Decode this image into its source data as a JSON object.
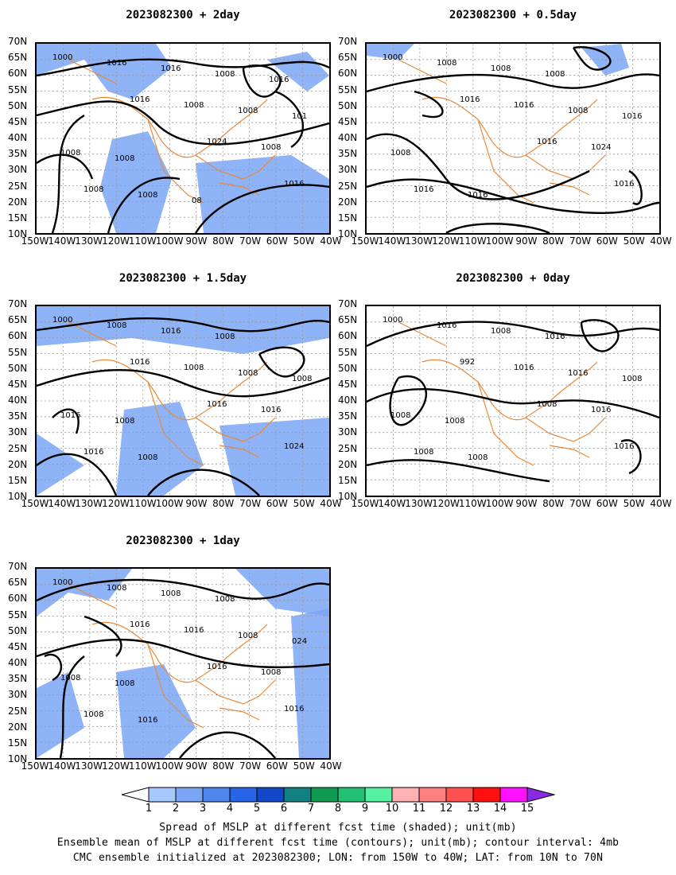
{
  "panels": [
    {
      "title": "2023082300  +  2day",
      "labels": [
        "1000",
        "1016",
        "1024",
        "1016",
        "1016",
        "1008",
        "1008",
        "1008",
        "1016",
        "1008",
        "1008",
        "1008",
        "1008",
        "101",
        "1008",
        "08",
        "1016"
      ]
    },
    {
      "title": "2023082300  +  0.5day",
      "labels": [
        "1000",
        "1016",
        "1016",
        "1016",
        "1008",
        "1016",
        "1024",
        "1016",
        "1008",
        "1008",
        "1008",
        "1016",
        "1008",
        "1016"
      ]
    },
    {
      "title": "2023082300  +  1.5day",
      "labels": [
        "1000",
        "1016",
        "1016",
        "1024",
        "1008",
        "1008",
        "1016",
        "1016",
        "1016",
        "1008",
        "1016",
        "1008",
        "1008",
        "1008",
        "1008"
      ]
    },
    {
      "title": "2023082300  +  0day",
      "labels": [
        "1000",
        "992",
        "1008",
        "1016",
        "1016",
        "1016",
        "1016",
        "1008",
        "1008",
        "1016",
        "1008",
        "1008",
        "1016",
        "1008",
        "1008"
      ]
    },
    {
      "title": "2023082300  +  1day",
      "labels": [
        "1000",
        "1016",
        "1016",
        "1016",
        "1008",
        "1016",
        "1008",
        "1008",
        "1008",
        "1008",
        "1008",
        "1016",
        "1008",
        "024",
        "1008"
      ]
    }
  ],
  "lat_labels": [
    "70N",
    "65N",
    "60N",
    "55N",
    "50N",
    "45N",
    "40N",
    "35N",
    "30N",
    "25N",
    "20N",
    "15N",
    "10N"
  ],
  "lon_labels": [
    "150W",
    "140W",
    "130W",
    "120W",
    "110W",
    "100W",
    "90W",
    "80W",
    "70W",
    "60W",
    "50W",
    "40W"
  ],
  "colorbar": {
    "values": [
      "1",
      "2",
      "3",
      "4",
      "5",
      "6",
      "7",
      "8",
      "9",
      "10",
      "11",
      "12",
      "13",
      "14",
      "15"
    ],
    "colors": [
      "#ffffff",
      "#a6c8ff",
      "#7aa6f5",
      "#4f86ee",
      "#2864e6",
      "#1548c8",
      "#128080",
      "#0f9a50",
      "#22c070",
      "#55f0a0",
      "#ffb0b0",
      "#ff8080",
      "#ff5050",
      "#ff1010",
      "#ff10ff",
      "#8a2be2"
    ]
  },
  "caption": [
    "Spread of MSLP at different fcst time (shaded); unit(mb)",
    "Ensemble mean of MSLP at different fcst time (contours); unit(mb); contour interval: 4mb",
    "CMC ensemble initialized at 2023082300; LON: from 150W to 40W; LAT: from 10N to 70N"
  ],
  "colors": {
    "spread": "#7aa6f5",
    "coast": "#e8893a",
    "contour": "#000000",
    "grid": "#999999"
  }
}
